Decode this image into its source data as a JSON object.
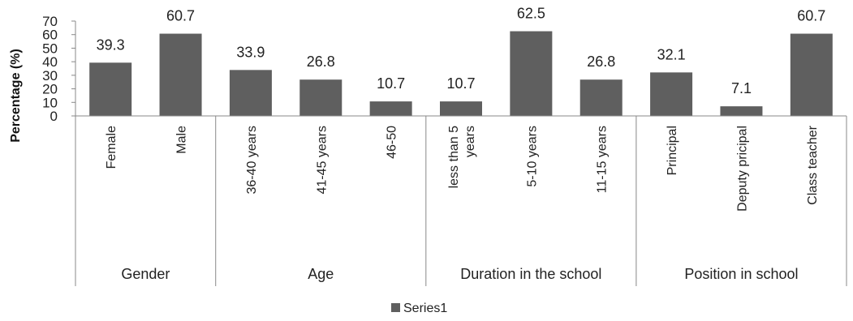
{
  "chart_data": {
    "type": "bar",
    "ylabel": "Percentage (%)",
    "ylim": [
      0,
      70
    ],
    "yticks": [
      "0",
      "10",
      "20",
      "30",
      "40",
      "50",
      "60",
      "70"
    ],
    "grid": false,
    "legend_position": "bottom",
    "series": [
      {
        "name": "Series1",
        "color": "#5f5f5f",
        "values": [
          39.3,
          60.7,
          33.9,
          26.8,
          10.7,
          10.7,
          62.5,
          26.8,
          32.1,
          7.1,
          60.7
        ]
      }
    ],
    "data_labels": [
      "39.3",
      "60.7",
      "33.9",
      "26.8",
      "10.7",
      "10.7",
      "62.5",
      "26.8",
      "32.1",
      "7.1",
      "60.7"
    ],
    "categories": [
      [
        "Female"
      ],
      [
        "Male"
      ],
      [
        "36-40 years"
      ],
      [
        "41-45 years"
      ],
      [
        "46-50"
      ],
      [
        "less than 5",
        "years"
      ],
      [
        "5-10 years"
      ],
      [
        "11-15 years"
      ],
      [
        "Principal"
      ],
      [
        "Deputy pricipal"
      ],
      [
        "Class teacher"
      ]
    ],
    "groups": [
      {
        "label": "Gender",
        "count": 2
      },
      {
        "label": "Age",
        "count": 3
      },
      {
        "label": "Duration in the school",
        "count": 3
      },
      {
        "label": "Position in school",
        "count": 3
      }
    ]
  }
}
